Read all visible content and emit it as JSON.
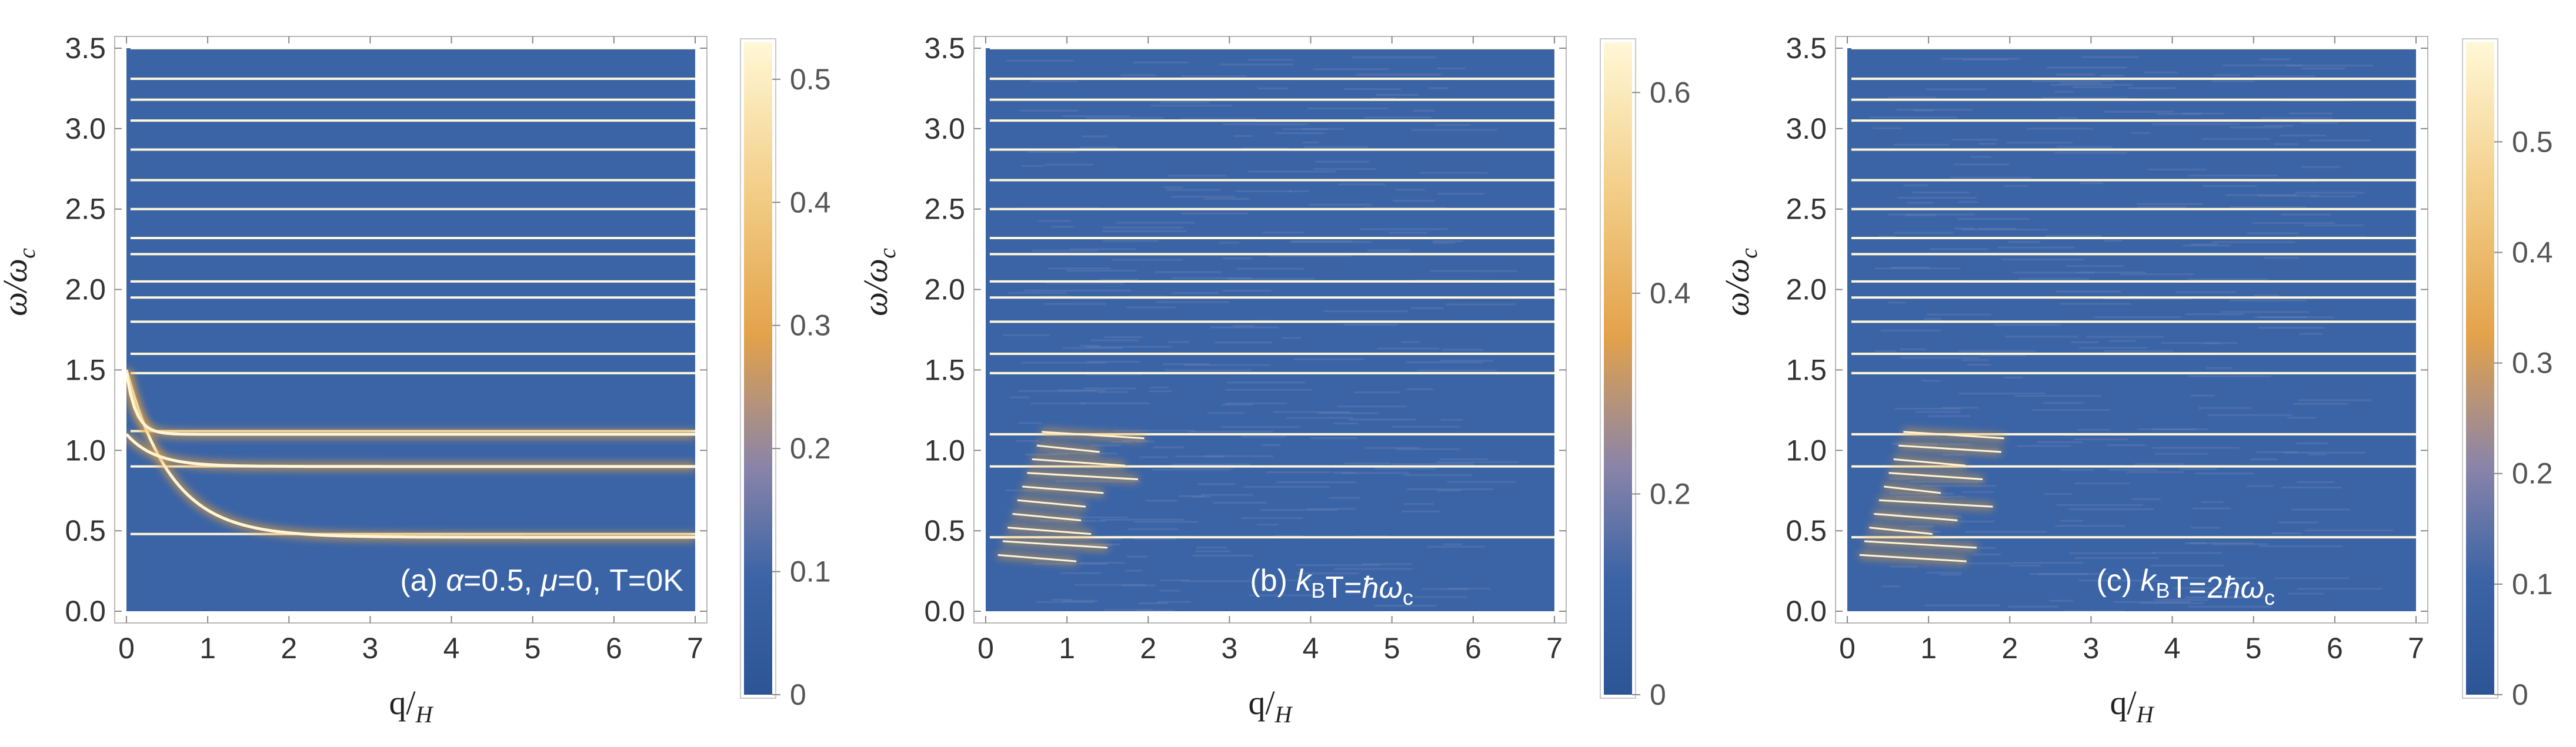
{
  "chart_data": [
    {
      "type": "heatmap",
      "panel": "a",
      "annotation": {
        "prefix": "(a)",
        "parts": [
          [
            "α",
            "i"
          ],
          [
            "=0.5, ",
            ""
          ],
          [
            "μ",
            "i"
          ],
          [
            "=0, T=0K",
            ""
          ]
        ]
      },
      "xlabel": {
        "main": "q/",
        "sub": "H"
      },
      "ylabel": {
        "main": "ω/ω",
        "sub": "c"
      },
      "xlim": [
        0,
        7
      ],
      "ylim": [
        0,
        3.5
      ],
      "xticks": [
        0,
        1,
        2,
        3,
        4,
        5,
        6,
        7
      ],
      "yticks": [
        "0.0",
        "0.5",
        "1.0",
        "1.5",
        "2.0",
        "2.5",
        "3.0",
        "3.5"
      ],
      "colorbar": {
        "min": 0,
        "max": 0.53,
        "ticks": [
          "0",
          "0.1",
          "0.2",
          "0.3",
          "0.4",
          "0.5"
        ]
      },
      "flat_bands_omega": [
        3.5,
        3.31,
        3.18,
        3.05,
        2.87,
        2.68,
        2.5,
        2.32,
        2.22,
        2.05,
        1.95,
        1.8,
        1.6,
        1.48,
        1.12,
        0.9,
        0.48
      ],
      "dispersive_branches": [
        {
          "omega_start": 1.5,
          "omega_end": 0.46,
          "description": "lowest branch decaying from 1.5 to about 0.46"
        },
        {
          "omega_start": 1.1,
          "omega_end": 0.9,
          "description": "branch near 0.9"
        },
        {
          "omega_start": 1.48,
          "omega_end": 1.1,
          "description": "branch settling at 1.1"
        }
      ]
    },
    {
      "type": "heatmap",
      "panel": "b",
      "annotation": {
        "prefix": "(b)",
        "parts": [
          [
            "k",
            "i"
          ],
          [
            "B",
            "sub"
          ],
          [
            "T=",
            ""
          ],
          [
            "ħω",
            "i"
          ],
          [
            "c",
            "sub"
          ]
        ]
      },
      "xlabel": {
        "main": "q/",
        "sub": "H"
      },
      "ylabel": {
        "main": "ω/ω",
        "sub": "c"
      },
      "xlim": [
        0,
        7
      ],
      "ylim": [
        0,
        3.5
      ],
      "xticks": [
        0,
        1,
        2,
        3,
        4,
        5,
        6,
        7
      ],
      "yticks": [
        "0.0",
        "0.5",
        "1.0",
        "1.5",
        "2.0",
        "2.5",
        "3.0",
        "3.5"
      ],
      "colorbar": {
        "min": 0,
        "max": 0.65,
        "ticks": [
          "0",
          "0.2",
          "0.4",
          "0.6"
        ]
      },
      "flat_bands_omega": [
        3.5,
        3.31,
        3.18,
        3.05,
        2.87,
        2.68,
        2.5,
        2.32,
        2.22,
        2.05,
        1.95,
        1.8,
        1.6,
        1.48,
        1.1,
        0.9,
        0.46
      ]
    },
    {
      "type": "heatmap",
      "panel": "c",
      "annotation": {
        "prefix": "(c)",
        "parts": [
          [
            "k",
            "i"
          ],
          [
            "B",
            "sub"
          ],
          [
            "T=2",
            ""
          ],
          [
            "ħω",
            "i"
          ],
          [
            "c",
            "sub"
          ]
        ]
      },
      "xlabel": {
        "main": "q/",
        "sub": "H"
      },
      "ylabel": {
        "main": "ω/ω",
        "sub": "c"
      },
      "xlim": [
        0,
        7
      ],
      "ylim": [
        0,
        3.5
      ],
      "xticks": [
        0,
        1,
        2,
        3,
        4,
        5,
        6,
        7
      ],
      "yticks": [
        "0.0",
        "0.5",
        "1.0",
        "1.5",
        "2.0",
        "2.5",
        "3.0",
        "3.5"
      ],
      "colorbar": {
        "min": 0,
        "max": 0.59,
        "ticks": [
          "0",
          "0.1",
          "0.2",
          "0.3",
          "0.4",
          "0.5"
        ]
      },
      "flat_bands_omega": [
        3.5,
        3.31,
        3.18,
        3.05,
        2.87,
        2.68,
        2.5,
        2.32,
        2.22,
        2.05,
        1.95,
        1.8,
        1.6,
        1.48,
        1.1,
        0.9,
        0.46
      ]
    }
  ],
  "colors": {
    "background": "#3b64a6",
    "band_glow": "#e8a23a",
    "band_core": "#fff6d8",
    "colormap": [
      "#2c5596",
      "#3b64a6",
      "#8a84a8",
      "#e3a24a",
      "#f3cf8a",
      "#fff8d6"
    ]
  }
}
